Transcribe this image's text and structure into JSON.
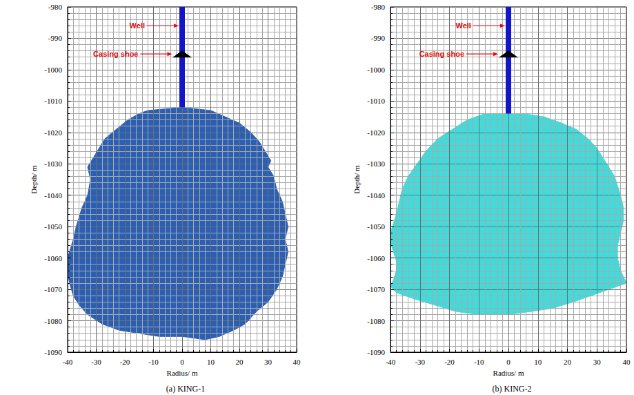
{
  "chart_data": [
    {
      "type": "polygon",
      "title": "(a) KING-1",
      "x_label": "Radius/ m",
      "y_label": "Depth/ m",
      "xlim": [
        -40,
        40
      ],
      "xticks": [
        -40,
        -30,
        -20,
        -10,
        0,
        10,
        20,
        30,
        40
      ],
      "ylim": [
        -1090,
        -980
      ],
      "yticks": [
        -1090,
        -1080,
        -1070,
        -1060,
        -1050,
        -1040,
        -1030,
        -1020,
        -1010,
        -1000,
        -990,
        -980
      ],
      "grid": true,
      "color": "#2b5fb4",
      "outline": {
        "x": [
          -12,
          -15,
          -19,
          -23,
          -27,
          -29,
          -31,
          -33,
          -32,
          -33,
          -35,
          -36,
          -37,
          -38,
          -39,
          -40,
          -40,
          -39,
          -38,
          -36,
          -33,
          -28,
          -22,
          -15,
          -8,
          0,
          8,
          13,
          18,
          22,
          26,
          30,
          33,
          35,
          36,
          37,
          36,
          37,
          36,
          35,
          33,
          32,
          30,
          31,
          29,
          27,
          24,
          20,
          15,
          10,
          5,
          0,
          -6
        ],
        "y": [
          -1013,
          -1014,
          -1016,
          -1019,
          -1022,
          -1025,
          -1028,
          -1031,
          -1035,
          -1040,
          -1044,
          -1047,
          -1050,
          -1054,
          -1057,
          -1060,
          -1065,
          -1069,
          -1072,
          -1075,
          -1078,
          -1081,
          -1083,
          -1084,
          -1085,
          -1085,
          -1086,
          -1085,
          -1083,
          -1081,
          -1077,
          -1074,
          -1070,
          -1066,
          -1062,
          -1058,
          -1054,
          -1050,
          -1046,
          -1042,
          -1038,
          -1034,
          -1031,
          -1029,
          -1026,
          -1023,
          -1020,
          -1017,
          -1015,
          -1013,
          -1012.5,
          -1012,
          -1012.5
        ]
      },
      "well": {
        "x": 0,
        "top": -980,
        "bottom": -1012,
        "color": "#1414c8"
      },
      "casing_shoe": {
        "x": 0,
        "y": -995,
        "color": "#000000"
      },
      "annotations": [
        {
          "text": "Well",
          "x": -1.2,
          "y": -986,
          "color": "#e01010"
        },
        {
          "text": "Casing shoe",
          "x": -3.5,
          "y": -995,
          "color": "#e01010"
        }
      ]
    },
    {
      "type": "polygon",
      "title": "(b) KING-2",
      "x_label": "Radius/ m",
      "y_label": "Depth/ m",
      "xlim": [
        -40,
        40
      ],
      "xticks": [
        -40,
        -30,
        -20,
        -10,
        0,
        10,
        20,
        30,
        40
      ],
      "ylim": [
        -1090,
        -980
      ],
      "yticks": [
        -1090,
        -1080,
        -1070,
        -1060,
        -1050,
        -1040,
        -1030,
        -1020,
        -1010,
        -1000,
        -990,
        -980
      ],
      "grid": true,
      "color": "#40dcdc",
      "outline": {
        "x": [
          -8,
          -14,
          -19,
          -24,
          -28,
          -31,
          -34,
          -36,
          -37,
          -38,
          -39,
          -40,
          -40,
          -39,
          -38,
          -38,
          -39,
          -40,
          -38,
          -32,
          -25,
          -18,
          -10,
          0,
          8,
          15,
          22,
          28,
          34,
          40,
          38,
          37,
          37,
          38,
          39,
          39,
          38,
          37,
          36,
          34,
          32,
          30,
          27,
          23,
          18,
          12,
          5,
          0
        ],
        "y": [
          -1014,
          -1016,
          -1019,
          -1022,
          -1026,
          -1030,
          -1034,
          -1038,
          -1042,
          -1046,
          -1049,
          -1052,
          -1055,
          -1058,
          -1061,
          -1064,
          -1067,
          -1069,
          -1071,
          -1073,
          -1075,
          -1077,
          -1078,
          -1078,
          -1077,
          -1076,
          -1074,
          -1072,
          -1070,
          -1068,
          -1064,
          -1060,
          -1056,
          -1052,
          -1048,
          -1044,
          -1040,
          -1037,
          -1034,
          -1031,
          -1028,
          -1025,
          -1022,
          -1019,
          -1017,
          -1015,
          -1014,
          -1014
        ]
      },
      "well": {
        "x": 0,
        "top": -980,
        "bottom": -1014,
        "color": "#1414c8"
      },
      "casing_shoe": {
        "x": 0,
        "y": -995,
        "color": "#000000"
      },
      "annotations": [
        {
          "text": "Well",
          "x": -1.2,
          "y": -986,
          "color": "#e01010"
        },
        {
          "text": "Casing shoe",
          "x": -3.5,
          "y": -995,
          "color": "#e01010"
        }
      ]
    }
  ]
}
